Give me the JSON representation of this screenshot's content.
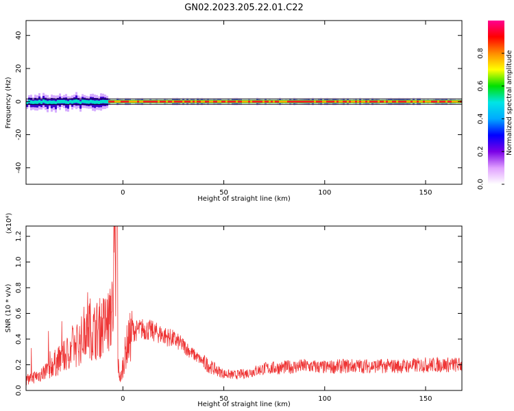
{
  "title": "GN02.2023.205.22.01.C22",
  "chart_data": [
    {
      "type": "heatmap",
      "title": "GN02.2023.205.22.01.C22",
      "xlabel": "Height of straight line (km)",
      "ylabel": "Frequency (Hz)",
      "xlim": [
        -48,
        168
      ],
      "ylim": [
        -50,
        49
      ],
      "x_ticks": [
        0,
        50,
        100,
        150
      ],
      "y_ticks": [
        40,
        20,
        0,
        -20,
        -40
      ],
      "band_center_hz": 0,
      "colorbar": {
        "label": "Normalized spectral amplitude",
        "range": [
          0.0,
          1.0
        ],
        "ticks": [
          "0.0",
          "0.2",
          "0.4",
          "0.6",
          "0.8"
        ],
        "colormap": [
          "#ffffff",
          "#e0a0ff",
          "#7a00e6",
          "#0000ff",
          "#00aaff",
          "#00e5e5",
          "#00e000",
          "#ffff00",
          "#ff8c00",
          "#ff0000",
          "#ff0090"
        ]
      }
    },
    {
      "type": "line",
      "xlabel": "Height of straight line (km)",
      "ylabel": "SNR (10 * v/v)",
      "scale_label": "(x10⁴)",
      "xlim": [
        -48,
        168
      ],
      "ylim": [
        0,
        1.28
      ],
      "x_ticks": [
        0,
        50,
        100,
        150
      ],
      "y_ticks": [
        "0.0",
        "0.2",
        "0.4",
        "0.6",
        "0.8",
        "1.0",
        "1.2"
      ],
      "series": [
        {
          "color": "#ee3333",
          "x": [
            -48,
            -45,
            -40,
            -35,
            -30,
            -25,
            -20,
            -18,
            -15,
            -10,
            -6,
            -4,
            -3,
            -2,
            -1,
            0,
            2,
            5,
            10,
            15,
            20,
            25,
            30,
            35,
            40,
            45,
            50,
            55,
            60,
            65,
            70,
            80,
            90,
            100,
            110,
            120,
            130,
            140,
            150,
            160,
            168
          ],
          "y": [
            0.08,
            0.1,
            0.13,
            0.2,
            0.25,
            0.33,
            0.4,
            0.55,
            0.45,
            0.5,
            0.55,
            1.0,
            0.3,
            0.15,
            0.08,
            0.2,
            0.35,
            0.46,
            0.48,
            0.46,
            0.43,
            0.4,
            0.35,
            0.28,
            0.22,
            0.17,
            0.13,
            0.12,
            0.13,
            0.15,
            0.17,
            0.18,
            0.19,
            0.18,
            0.19,
            0.19,
            0.19,
            0.19,
            0.2,
            0.2,
            0.2
          ]
        }
      ]
    }
  ]
}
